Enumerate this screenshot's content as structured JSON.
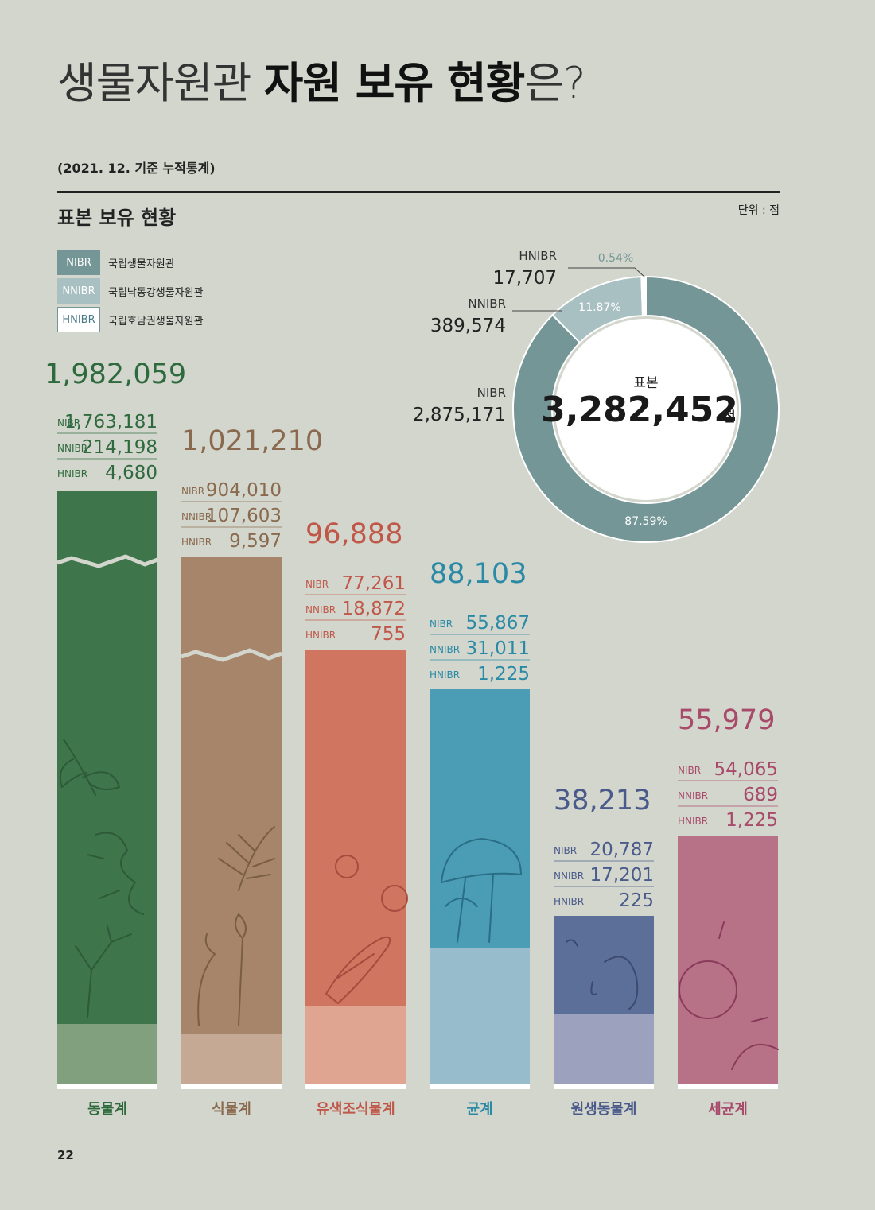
{
  "title": {
    "regular": "생물자원관 ",
    "bold": "자원 보유 현황",
    "suffix": "은?"
  },
  "subtitle": "(2021. 12. 기준 누적통계)",
  "section_title": "표본 보유 현황",
  "unit": "단위 : 점",
  "page_number": "22",
  "legend": [
    {
      "code": "NIBR",
      "name": "국립생물자원관",
      "color": "#759696"
    },
    {
      "code": "NNIBR",
      "name": "국립낙동강생물자원관",
      "color": "#a8c0c2"
    },
    {
      "code": "HNIBR",
      "name": "국립호남권생물자원관",
      "color": "#ffffff"
    }
  ],
  "chart_data": [
    {
      "type": "pie",
      "subtype": "donut",
      "center_label": "표본",
      "center_total": "3,282,452",
      "center_unit": "점",
      "slices": [
        {
          "name": "NIBR",
          "value": 2875171,
          "label": "2,875,171",
          "percent": "87.59%",
          "color": "#759696"
        },
        {
          "name": "NNIBR",
          "value": 389574,
          "label": "389,574",
          "percent": "11.87%",
          "color": "#a8c0c2"
        },
        {
          "name": "HNIBR",
          "value": 17707,
          "label": "17,707",
          "percent": "0.54%",
          "color": "#ffffff"
        }
      ]
    },
    {
      "type": "bar",
      "stacked": true,
      "axis_break": true,
      "categories": [
        {
          "name": "동물계",
          "total": "1,982,059",
          "color": "#3f754a",
          "light": "#80a07e",
          "text_color": "#2f6a3e",
          "breakdown": [
            {
              "code": "NIBR",
              "value": "1,763,181"
            },
            {
              "code": "NNIBR",
              "value": "214,198"
            },
            {
              "code": "HNIBR",
              "value": "4,680"
            }
          ]
        },
        {
          "name": "식물계",
          "total": "1,021,210",
          "color": "#a6856a",
          "light": "#c6a995",
          "text_color": "#8a6a4e",
          "breakdown": [
            {
              "code": "NIBR",
              "value": "904,010"
            },
            {
              "code": "NNIBR",
              "value": "107,603"
            },
            {
              "code": "HNIBR",
              "value": "9,597"
            }
          ]
        },
        {
          "name": "유색조식물계",
          "total": "96,888",
          "color": "#d07560",
          "light": "#dfa590",
          "text_color": "#c0584a",
          "breakdown": [
            {
              "code": "NIBR",
              "value": "77,261"
            },
            {
              "code": "NNIBR",
              "value": "18,872"
            },
            {
              "code": "HNIBR",
              "value": "755"
            }
          ]
        },
        {
          "name": "균계",
          "total": "88,103",
          "color": "#4a9db5",
          "light": "#97bccb",
          "text_color": "#2a8aa6",
          "breakdown": [
            {
              "code": "NIBR",
              "value": "55,867"
            },
            {
              "code": "NNIBR",
              "value": "31,011"
            },
            {
              "code": "HNIBR",
              "value": "1,225"
            }
          ]
        },
        {
          "name": "원생동물계",
          "total": "38,213",
          "color": "#5c6f98",
          "light": "#9ca2bd",
          "text_color": "#4a5a8a",
          "breakdown": [
            {
              "code": "NIBR",
              "value": "20,787"
            },
            {
              "code": "NNIBR",
              "value": "17,201"
            },
            {
              "code": "HNIBR",
              "value": "225"
            }
          ]
        },
        {
          "name": "세균계",
          "total": "55,979",
          "color": "#b77288",
          "light": "#b77288",
          "text_color": "#a84a6a",
          "breakdown": [
            {
              "code": "NIBR",
              "value": "54,065"
            },
            {
              "code": "NNIBR",
              "value": "689"
            },
            {
              "code": "HNIBR",
              "value": "1,225"
            }
          ]
        }
      ]
    }
  ]
}
